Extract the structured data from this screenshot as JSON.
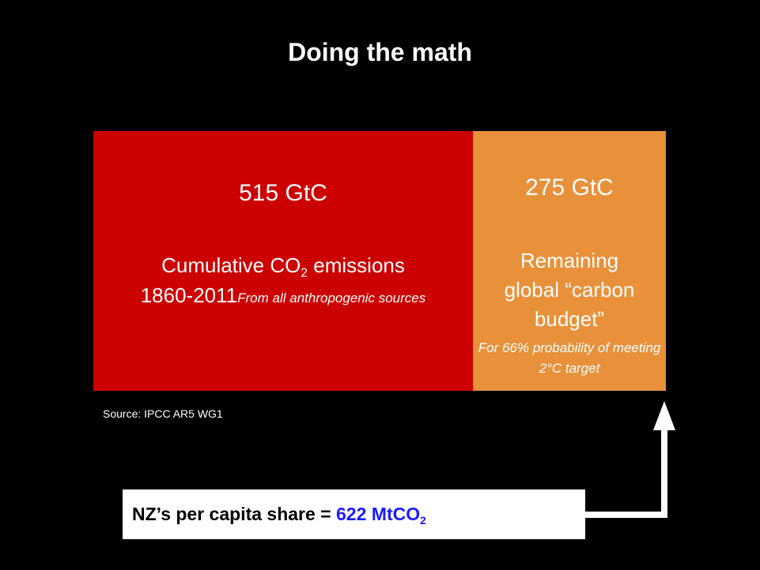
{
  "title": "Doing the math",
  "past": {
    "amount": "515 GtC",
    "label_pre": "Cumulative CO",
    "label_sub": "2",
    "label_post": " emissions",
    "years": "1860-2011",
    "note": "From all anthropogenic sources"
  },
  "remaining": {
    "amount": "275 GtC",
    "label": "Remaining global “carbon budget”",
    "note": "For 66% probability of meeting 2°C target"
  },
  "source": "Source: IPCC AR5 WG1",
  "callout": {
    "text": "NZ’s per capita share = ",
    "value": "622 MtCO",
    "sub": "2"
  }
}
